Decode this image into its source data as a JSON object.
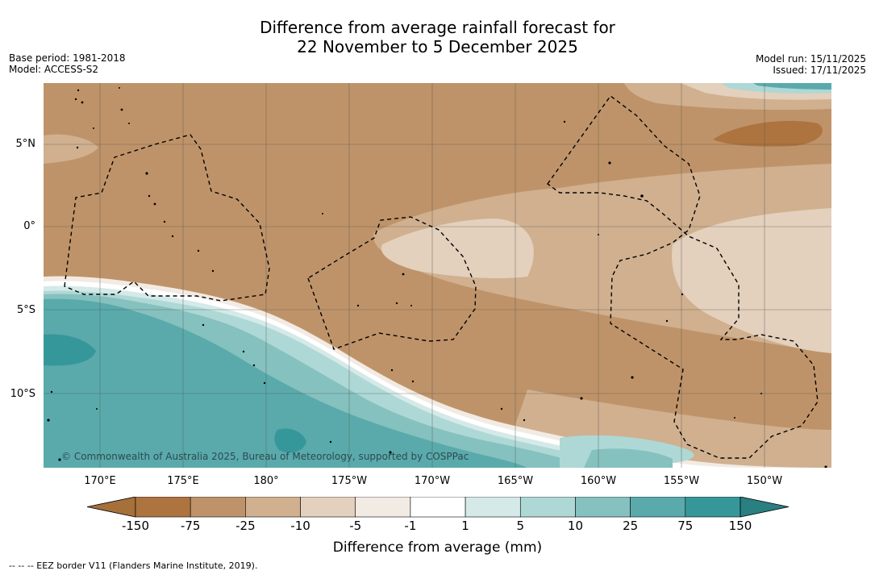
{
  "title": {
    "line1": "Difference from average rainfall forecast for",
    "line2": "22 November to 5 December 2025"
  },
  "meta_left": {
    "base_period": "Base period: 1981-2018",
    "model": "Model: ACCESS-S2"
  },
  "meta_right": {
    "model_run": "Model run: 15/11/2025",
    "issued": "Issued: 17/11/2025"
  },
  "map": {
    "lat_labels": [
      "5°N",
      "0°",
      "5°S",
      "10°S"
    ],
    "lon_labels": [
      "170°E",
      "175°E",
      "180°",
      "175°W",
      "170°W",
      "165°W",
      "160°W",
      "155°W",
      "150°W"
    ],
    "copyright": "© Commonwealth of Australia 2025, Bureau of Meteorology, supported by COSPPac"
  },
  "colorbar": {
    "ticks": [
      "-150",
      "-75",
      "-25",
      "-10",
      "-5",
      "-1",
      "1",
      "5",
      "10",
      "25",
      "75",
      "150"
    ],
    "colors": [
      "#a5703a",
      "#ad7440",
      "#bf9369",
      "#d0b08f",
      "#e3d0bd",
      "#f2ebe4",
      "#ffffff",
      "#d5eae8",
      "#aed8d6",
      "#85c1bf",
      "#5aaaab",
      "#36979a",
      "#2a7f80"
    ],
    "label": "Difference from average (mm)"
  },
  "footnote": "--  --  -- EEZ border V11 (Flanders Marine Institute, 2019)."
}
